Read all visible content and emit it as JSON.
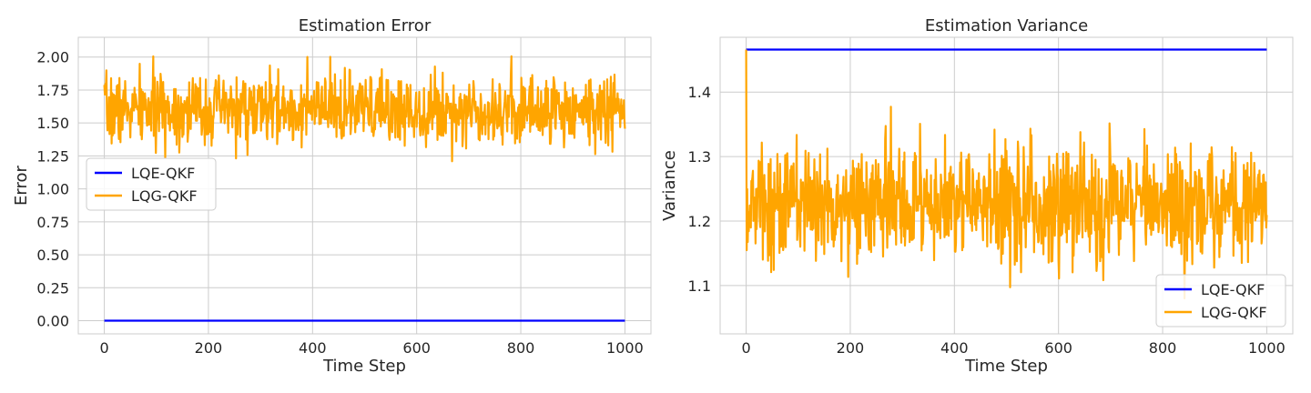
{
  "chart_data": [
    {
      "type": "line",
      "title": "Estimation Error",
      "xlabel": "Time Step",
      "ylabel": "Error",
      "xlim": [
        -50,
        1050
      ],
      "ylim": [
        -0.1,
        2.15
      ],
      "xticks": [
        0,
        200,
        400,
        600,
        800,
        1000
      ],
      "xtick_labels": [
        "0",
        "200",
        "400",
        "600",
        "800",
        "1000"
      ],
      "yticks": [
        0.0,
        0.25,
        0.5,
        0.75,
        1.0,
        1.25,
        1.5,
        1.75,
        2.0
      ],
      "ytick_labels": [
        "0.00",
        "0.25",
        "0.50",
        "0.75",
        "1.00",
        "1.25",
        "1.50",
        "1.75",
        "2.00"
      ],
      "grid": true,
      "legend": "center-left",
      "series": [
        {
          "name": "LQE-QKF",
          "color": "#0000ff",
          "x": [
            0,
            1000
          ],
          "values": [
            0.0,
            0.0
          ]
        },
        {
          "name": "LQG-QKF",
          "color": "#ffa500",
          "n_points": 1001,
          "mean": 1.6,
          "std": 0.13,
          "min": 1.2,
          "max": 2.04,
          "seed": 7
        }
      ]
    },
    {
      "type": "line",
      "title": "Estimation Variance",
      "xlabel": "Time Step",
      "ylabel": "Variance",
      "xlim": [
        -50,
        1050
      ],
      "ylim": [
        1.025,
        1.485
      ],
      "xticks": [
        0,
        200,
        400,
        600,
        800,
        1000
      ],
      "xtick_labels": [
        "0",
        "200",
        "400",
        "600",
        "800",
        "1000"
      ],
      "yticks": [
        1.1,
        1.2,
        1.3,
        1.4
      ],
      "ytick_labels": [
        "1.1",
        "1.2",
        "1.3",
        "1.4"
      ],
      "grid": true,
      "legend": "lower-right",
      "series": [
        {
          "name": "LQE-QKF",
          "color": "#0000ff",
          "x": [
            0,
            1000
          ],
          "values": [
            1.466,
            1.466
          ]
        },
        {
          "name": "LQG-QKF",
          "color": "#ffa500",
          "n_points": 1001,
          "first_value": 1.466,
          "mean": 1.228,
          "std": 0.045,
          "min": 1.047,
          "max": 1.39,
          "seed": 13
        }
      ]
    }
  ]
}
